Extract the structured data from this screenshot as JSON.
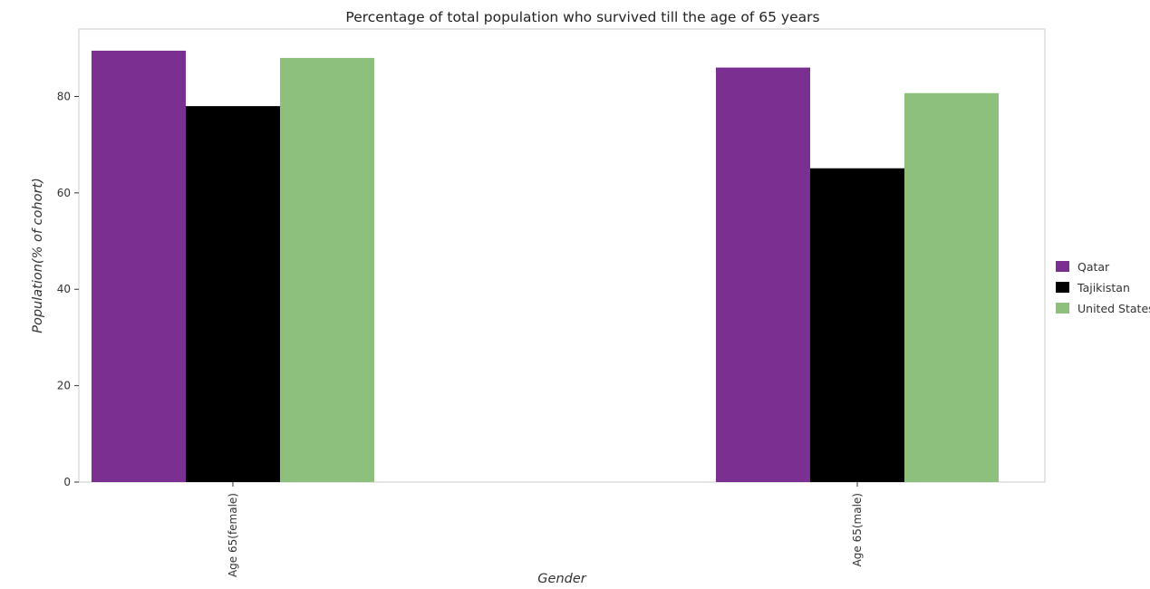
{
  "chart_data": {
    "type": "bar",
    "title": "Percentage of total population who survived till the age of 65 years",
    "xlabel": "Gender",
    "ylabel": "Population(% of cohort)",
    "categories": [
      "Age 65(female)",
      "Age 65(male)"
    ],
    "series": [
      {
        "name": "Qatar",
        "color": "#7b2f91",
        "values": [
          89.5,
          86.0
        ]
      },
      {
        "name": "Tajikistan",
        "color": "#000000",
        "values": [
          78.0,
          65.1
        ]
      },
      {
        "name": "United States",
        "color": "#8cc07c",
        "values": [
          88.0,
          80.7
        ]
      }
    ],
    "ylim": [
      0,
      94
    ],
    "yticks": [
      0,
      20,
      40,
      60,
      80
    ],
    "grid": false,
    "legend_position": "right"
  }
}
